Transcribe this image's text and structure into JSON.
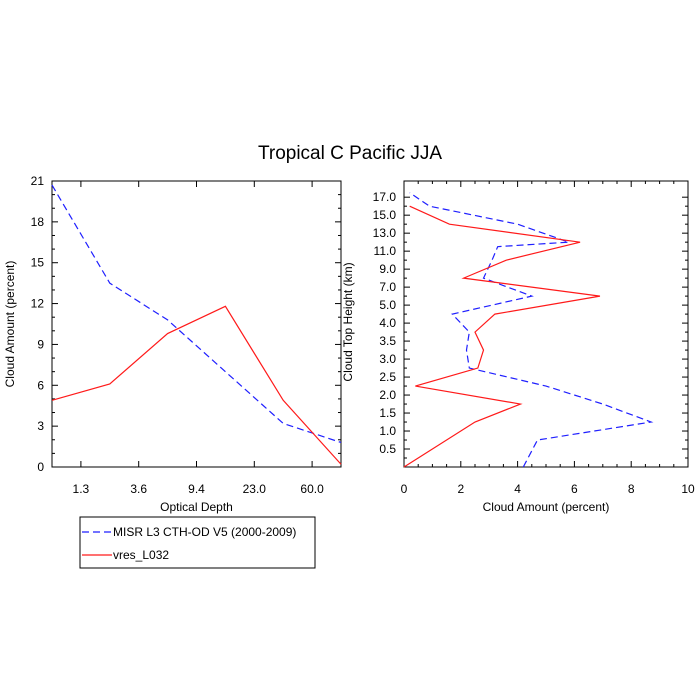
{
  "title": "Tropical C Pacific JJA",
  "legend": {
    "placement": "bottom-left",
    "entries": [
      {
        "label": "MISR L3 CTH-OD V5 (2000-2009)",
        "color": "#1f1fff",
        "dash": "dashed"
      },
      {
        "label": "vres_L032",
        "color": "#ff1a1a",
        "dash": "solid"
      }
    ]
  },
  "chart_data": [
    {
      "type": "line",
      "xlabel": "Optical Depth",
      "ylabel": "Cloud Amount (percent)",
      "x_tick_labels": [
        "1.3",
        "3.6",
        "9.4",
        "23.0",
        "60.0"
      ],
      "x_bins": 6,
      "ylim": [
        0,
        21
      ],
      "y_ticks": [
        "0",
        "3",
        "6",
        "9",
        "12",
        "15",
        "18",
        "21"
      ],
      "series": [
        {
          "name": "MISR L3 CTH-OD V5 (2000-2009)",
          "color": "#1f1fff",
          "values": [
            20.7,
            13.5,
            10.8,
            7.0,
            3.2,
            1.8
          ]
        },
        {
          "name": "vres_L032",
          "color": "#ff1a1a",
          "values": [
            4.9,
            6.1,
            9.8,
            11.8,
            4.9,
            0.2
          ]
        }
      ]
    },
    {
      "type": "line",
      "xlabel": "Cloud Amount (percent)",
      "ylabel": "Cloud Top Height (km)",
      "xlim": [
        0,
        10
      ],
      "x_ticks": [
        "0",
        "2",
        "4",
        "6",
        "8",
        "10"
      ],
      "y_tick_labels": [
        "0.5",
        "1.0",
        "1.5",
        "2.0",
        "2.5",
        "3.0",
        "3.5",
        "4.0",
        "5.0",
        "7.0",
        "9.0",
        "11.0",
        "13.0",
        "15.0",
        "17.0"
      ],
      "series": [
        {
          "name": "MISR L3 CTH-OD V5 (2000-2009)",
          "color": "#1f1fff",
          "points": [
            [
              4.2,
              0
            ],
            [
              4.7,
              0.75
            ],
            [
              8.7,
              1.25
            ],
            [
              7.0,
              1.75
            ],
            [
              5.0,
              2.25
            ],
            [
              2.3,
              2.75
            ],
            [
              2.2,
              3.25
            ],
            [
              2.3,
              3.75
            ],
            [
              1.7,
              4.5
            ],
            [
              4.5,
              6.0
            ],
            [
              2.8,
              8.0
            ],
            [
              3.1,
              10.0
            ],
            [
              3.3,
              11.5
            ],
            [
              5.8,
              12.0
            ],
            [
              4.0,
              14.0
            ],
            [
              0.9,
              16.0
            ],
            [
              0.2,
              17.5
            ]
          ]
        },
        {
          "name": "vres_L032",
          "color": "#ff1a1a",
          "points": [
            [
              0,
              0
            ],
            [
              2.5,
              1.25
            ],
            [
              4.1,
              1.75
            ],
            [
              0.4,
              2.25
            ],
            [
              2.6,
              2.75
            ],
            [
              2.8,
              3.25
            ],
            [
              2.5,
              3.75
            ],
            [
              3.2,
              4.5
            ],
            [
              6.9,
              6.0
            ],
            [
              2.1,
              8.0
            ],
            [
              3.6,
              10.0
            ],
            [
              6.2,
              12.0
            ],
            [
              1.6,
              14.0
            ],
            [
              0.2,
              16.0
            ]
          ]
        }
      ]
    }
  ]
}
